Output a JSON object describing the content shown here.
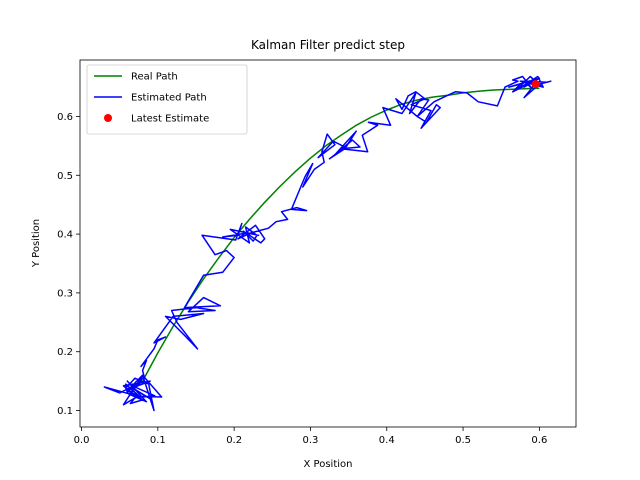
{
  "chart_data": {
    "type": "line",
    "title": "Kalman Filter predict step",
    "xlabel": "X Position",
    "ylabel": "Y Position",
    "xlim": [
      -0.002,
      0.648
    ],
    "ylim": [
      0.072,
      0.696
    ],
    "xticks": [
      0.0,
      0.1,
      0.2,
      0.3,
      0.4,
      0.5,
      0.6
    ],
    "xtick_labels": [
      "0.0",
      "0.1",
      "0.2",
      "0.3",
      "0.4",
      "0.5",
      "0.6"
    ],
    "yticks": [
      0.1,
      0.2,
      0.3,
      0.4,
      0.5,
      0.6
    ],
    "ytick_labels": [
      "0.1",
      "0.2",
      "0.3",
      "0.4",
      "0.5",
      "0.6"
    ],
    "grid": false,
    "legend_position": "upper-left",
    "series": [
      {
        "name": "Real Path",
        "kind": "line",
        "color": "#008000",
        "x": [
          0.08,
          0.1,
          0.12,
          0.14,
          0.16,
          0.18,
          0.2,
          0.22,
          0.24,
          0.26,
          0.28,
          0.3,
          0.32,
          0.34,
          0.36,
          0.38,
          0.4,
          0.42,
          0.44,
          0.46,
          0.48,
          0.5,
          0.52,
          0.54,
          0.56,
          0.58,
          0.6
        ],
        "y": [
          0.15,
          0.198,
          0.243,
          0.285,
          0.324,
          0.36,
          0.394,
          0.425,
          0.454,
          0.481,
          0.506,
          0.529,
          0.55,
          0.568,
          0.585,
          0.599,
          0.611,
          0.621,
          0.628,
          0.633,
          0.636,
          0.64,
          0.643,
          0.645,
          0.646,
          0.647,
          0.648
        ]
      },
      {
        "name": "Estimated Path",
        "kind": "line",
        "color": "#0000ff",
        "x": [
          0.072,
          0.06,
          0.058,
          0.075,
          0.055,
          0.08,
          0.065,
          0.09,
          0.07,
          0.06,
          0.085,
          0.062,
          0.078,
          0.05,
          0.03,
          0.072,
          0.064,
          0.08,
          0.058,
          0.07,
          0.088,
          0.095,
          0.08,
          0.105,
          0.075,
          0.06,
          0.09,
          0.055,
          0.072,
          0.096,
          0.07,
          0.082,
          0.08,
          0.085,
          0.078,
          0.095,
          0.1,
          0.11,
          0.095,
          0.12,
          0.16,
          0.13,
          0.11,
          0.135,
          0.152,
          0.125,
          0.118,
          0.15,
          0.175,
          0.14,
          0.16,
          0.182,
          0.135,
          0.16,
          0.185,
          0.2,
          0.19,
          0.175,
          0.158,
          0.202,
          0.21,
          0.205,
          0.185,
          0.218,
          0.232,
          0.195,
          0.22,
          0.215,
          0.23,
          0.225,
          0.212,
          0.235,
          0.24,
          0.228,
          0.205,
          0.222,
          0.245,
          0.255,
          0.27,
          0.262,
          0.282,
          0.295,
          0.275,
          0.293,
          0.303,
          0.29,
          0.305,
          0.318,
          0.315,
          0.322,
          0.332,
          0.31,
          0.33,
          0.345,
          0.325,
          0.345,
          0.36,
          0.332,
          0.355,
          0.365,
          0.34,
          0.375,
          0.368,
          0.388,
          0.376,
          0.405,
          0.395,
          0.42,
          0.438,
          0.43,
          0.445,
          0.455,
          0.44,
          0.452,
          0.465,
          0.47,
          0.445,
          0.458,
          0.432,
          0.45,
          0.438,
          0.428,
          0.42,
          0.412,
          0.44,
          0.462,
          0.478,
          0.49,
          0.505,
          0.52,
          0.545,
          0.555,
          0.572,
          0.565,
          0.578,
          0.59,
          0.58,
          0.602,
          0.588,
          0.57,
          0.598,
          0.605,
          0.575,
          0.585,
          0.61,
          0.615,
          0.6,
          0.58,
          0.59,
          0.596,
          0.565,
          0.575,
          0.56,
          0.6,
          0.58,
          0.59,
          0.6,
          0.595
        ],
        "y": [
          0.15,
          0.13,
          0.145,
          0.125,
          0.11,
          0.16,
          0.14,
          0.12,
          0.135,
          0.15,
          0.115,
          0.128,
          0.148,
          0.13,
          0.14,
          0.125,
          0.112,
          0.118,
          0.138,
          0.155,
          0.145,
          0.1,
          0.16,
          0.123,
          0.124,
          0.135,
          0.15,
          0.142,
          0.122,
          0.125,
          0.14,
          0.158,
          0.168,
          0.185,
          0.175,
          0.205,
          0.22,
          0.225,
          0.215,
          0.26,
          0.265,
          0.255,
          0.26,
          0.228,
          0.205,
          0.25,
          0.27,
          0.275,
          0.27,
          0.268,
          0.292,
          0.278,
          0.275,
          0.33,
          0.335,
          0.36,
          0.372,
          0.365,
          0.398,
          0.39,
          0.418,
          0.398,
          0.395,
          0.402,
          0.398,
          0.408,
          0.385,
          0.412,
          0.398,
          0.388,
          0.405,
          0.385,
          0.392,
          0.415,
          0.392,
          0.402,
          0.41,
          0.421,
          0.425,
          0.438,
          0.445,
          0.44,
          0.442,
          0.498,
          0.52,
          0.48,
          0.51,
          0.522,
          0.54,
          0.57,
          0.552,
          0.53,
          0.558,
          0.548,
          0.528,
          0.545,
          0.575,
          0.535,
          0.56,
          0.548,
          0.545,
          0.54,
          0.568,
          0.585,
          0.59,
          0.585,
          0.615,
          0.605,
          0.64,
          0.605,
          0.63,
          0.628,
          0.6,
          0.59,
          0.62,
          0.615,
          0.58,
          0.61,
          0.62,
          0.63,
          0.642,
          0.635,
          0.612,
          0.63,
          0.6,
          0.625,
          0.635,
          0.642,
          0.64,
          0.625,
          0.618,
          0.65,
          0.66,
          0.662,
          0.668,
          0.648,
          0.66,
          0.652,
          0.668,
          0.645,
          0.668,
          0.65,
          0.66,
          0.66,
          0.658,
          0.66,
          0.655,
          0.632,
          0.648,
          0.662,
          0.642,
          0.655,
          0.65,
          0.665,
          0.65,
          0.658,
          0.652,
          0.655
        ]
      },
      {
        "name": "Latest Estimate",
        "kind": "point",
        "color": "#ff0000",
        "x": [
          0.595
        ],
        "y": [
          0.655
        ]
      }
    ]
  }
}
